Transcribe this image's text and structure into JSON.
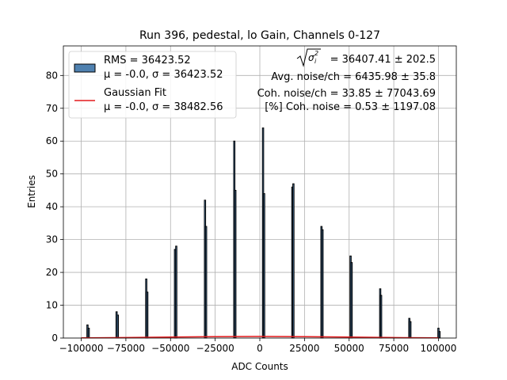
{
  "chart_data": {
    "type": "bar",
    "title": "Run 396, pedestal, lo Gain, Channels 0-127",
    "xlabel": "ADC Counts",
    "ylabel": "Entries",
    "xlim": [
      -110000,
      110000
    ],
    "ylim": [
      0,
      89
    ],
    "grid": true,
    "legend_placement": "top-left",
    "x_ticks": [
      -100000,
      -75000,
      -50000,
      -25000,
      0,
      25000,
      50000,
      75000,
      100000
    ],
    "x_tick_labels": [
      "−100000",
      "−75000",
      "−50000",
      "−25000",
      "0",
      "25000",
      "50000",
      "75000",
      "100000"
    ],
    "y_ticks": [
      0,
      10,
      20,
      30,
      40,
      50,
      60,
      70,
      80
    ],
    "y_tick_labels": [
      "0",
      "10",
      "20",
      "30",
      "40",
      "50",
      "60",
      "70",
      "80"
    ],
    "colors": {
      "hist_fill": "#4f81b0",
      "hist_edge": "#000000",
      "fit": "#e41a1c",
      "grid": "#b0b0b0"
    },
    "legend": [
      {
        "kind": "patch",
        "line1": "RMS = 36423.52",
        "line2": "μ = -0.0, σ = 36423.52"
      },
      {
        "kind": "line",
        "line1": "Gaussian Fit",
        "line2": "μ = -0.0, σ = 38482.56"
      }
    ],
    "annotations": {
      "sqrt_sigma_value": "= 36407.41 ± 202.5",
      "avg_noise": "Avg. noise/ch = 6435.98 ± 35.8",
      "coh_noise": "Coh. noise/ch = 33.85 ± 77043.69",
      "pct_coh_noise": "[%] Coh. noise = 0.53 ± 1197.08"
    },
    "series": [
      {
        "name": "RMS = 36423.52",
        "kind": "histogram",
        "bins": [
          {
            "x": -96500,
            "y": 4
          },
          {
            "x": -95800,
            "y": 3
          },
          {
            "x": -80200,
            "y": 8
          },
          {
            "x": -79500,
            "y": 7
          },
          {
            "x": -63600,
            "y": 18
          },
          {
            "x": -63000,
            "y": 14
          },
          {
            "x": -47500,
            "y": 27
          },
          {
            "x": -46800,
            "y": 28
          },
          {
            "x": -30700,
            "y": 42
          },
          {
            "x": -30100,
            "y": 34
          },
          {
            "x": -14300,
            "y": 60
          },
          {
            "x": -13700,
            "y": 45
          },
          {
            "x": 1800,
            "y": 64
          },
          {
            "x": 2400,
            "y": 44
          },
          {
            "x": 18200,
            "y": 46
          },
          {
            "x": 18800,
            "y": 47
          },
          {
            "x": 34500,
            "y": 34
          },
          {
            "x": 35100,
            "y": 33
          },
          {
            "x": 50800,
            "y": 25
          },
          {
            "x": 51400,
            "y": 23
          },
          {
            "x": 67400,
            "y": 15
          },
          {
            "x": 67900,
            "y": 13
          },
          {
            "x": 83700,
            "y": 6
          },
          {
            "x": 84300,
            "y": 5
          },
          {
            "x": 100000,
            "y": 3
          },
          {
            "x": 100600,
            "y": 2
          }
        ]
      },
      {
        "name": "Gaussian Fit",
        "kind": "line",
        "x": [
          -100000,
          -75000,
          -50000,
          -25000,
          0,
          25000,
          50000,
          75000,
          100000
        ],
        "y": [
          0.05,
          0.15,
          0.29,
          0.42,
          0.48,
          0.42,
          0.29,
          0.15,
          0.05
        ]
      }
    ]
  }
}
